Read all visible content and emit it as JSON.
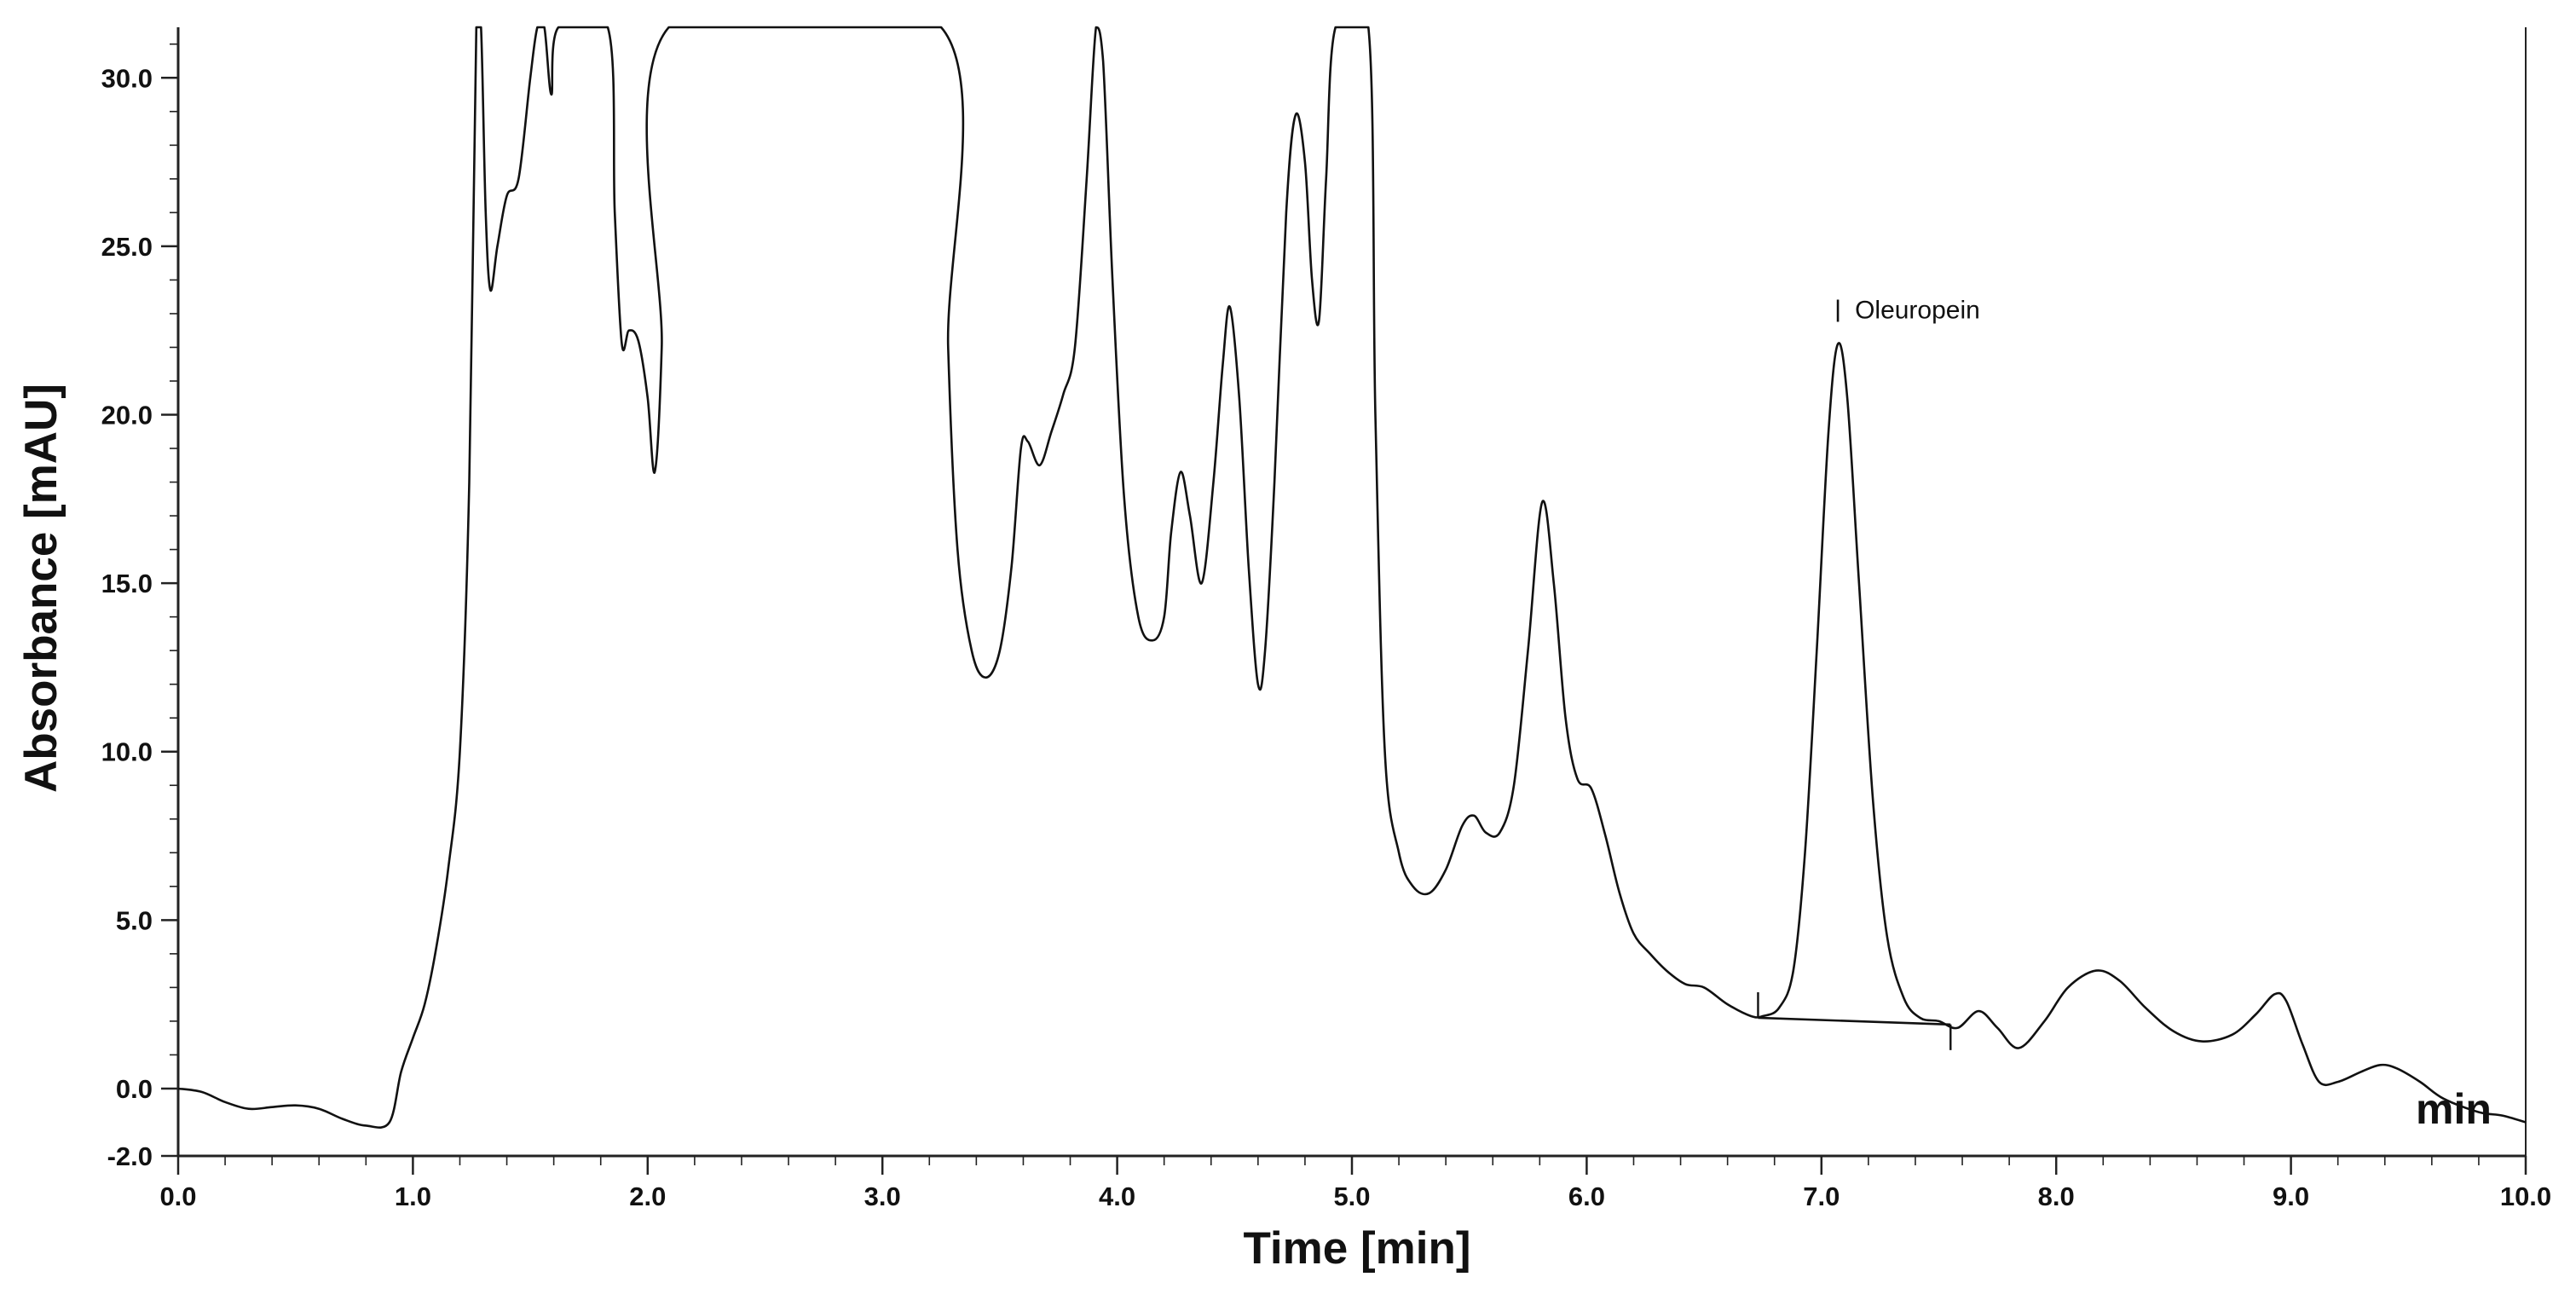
{
  "chart_data": {
    "type": "line",
    "title": "",
    "xlabel": "Time [min]",
    "ylabel": "Absorbance [mAU]",
    "x_unit_label": "min",
    "xlim": [
      0.0,
      10.0
    ],
    "ylim": [
      -2.0,
      31.5
    ],
    "x_ticks": [
      "0.0",
      "1.0",
      "2.0",
      "3.0",
      "4.0",
      "5.0",
      "6.0",
      "7.0",
      "8.0",
      "9.0",
      "10.0"
    ],
    "y_ticks": [
      "-2.0",
      "0.0",
      "5.0",
      "10.0",
      "15.0",
      "20.0",
      "25.0",
      "30.0"
    ],
    "x_tick_values": [
      0,
      1,
      2,
      3,
      4,
      5,
      6,
      7,
      8,
      9,
      10
    ],
    "y_tick_values": [
      -2,
      0,
      5,
      10,
      15,
      20,
      25,
      30
    ],
    "grid": false,
    "series": [
      {
        "points": [
          [
            0.0,
            0.0
          ],
          [
            0.1,
            -0.1
          ],
          [
            0.2,
            -0.4
          ],
          [
            0.3,
            -0.6
          ],
          [
            0.4,
            -0.55
          ],
          [
            0.5,
            -0.5
          ],
          [
            0.6,
            -0.6
          ],
          [
            0.7,
            -0.9
          ],
          [
            0.8,
            -1.1
          ],
          [
            0.9,
            -1.0
          ],
          [
            0.95,
            0.5
          ],
          [
            1.0,
            1.5
          ],
          [
            1.05,
            2.5
          ],
          [
            1.1,
            4.2
          ],
          [
            1.15,
            6.5
          ],
          [
            1.2,
            10.0
          ],
          [
            1.24,
            18.0
          ],
          [
            1.27,
            32.5
          ],
          [
            1.29,
            32.5
          ],
          [
            1.31,
            26.0
          ],
          [
            1.33,
            23.7
          ],
          [
            1.36,
            25.0
          ],
          [
            1.4,
            26.5
          ],
          [
            1.45,
            27.0
          ],
          [
            1.5,
            30.0
          ],
          [
            1.53,
            32.5
          ],
          [
            1.56,
            31.5
          ],
          [
            1.59,
            29.5
          ],
          [
            1.62,
            32.5
          ],
          [
            1.83,
            32.5
          ],
          [
            1.86,
            26.0
          ],
          [
            1.89,
            22.1
          ],
          [
            1.92,
            22.5
          ],
          [
            1.96,
            22.2
          ],
          [
            2.0,
            20.5
          ],
          [
            2.03,
            18.3
          ],
          [
            2.06,
            22.0
          ],
          [
            2.09,
            32.5
          ],
          [
            3.25,
            32.5
          ],
          [
            3.28,
            22.0
          ],
          [
            3.32,
            16.0
          ],
          [
            3.38,
            13.0
          ],
          [
            3.44,
            12.2
          ],
          [
            3.5,
            13.0
          ],
          [
            3.55,
            15.5
          ],
          [
            3.59,
            19.0
          ],
          [
            3.62,
            19.2
          ],
          [
            3.67,
            18.5
          ],
          [
            3.72,
            19.5
          ],
          [
            3.77,
            20.6
          ],
          [
            3.82,
            22.0
          ],
          [
            3.87,
            27.0
          ],
          [
            3.91,
            31.5
          ],
          [
            3.94,
            30.5
          ],
          [
            3.98,
            24.0
          ],
          [
            4.03,
            17.5
          ],
          [
            4.09,
            14.0
          ],
          [
            4.15,
            13.3
          ],
          [
            4.2,
            14.0
          ],
          [
            4.23,
            16.5
          ],
          [
            4.27,
            18.3
          ],
          [
            4.31,
            17.0
          ],
          [
            4.36,
            15.0
          ],
          [
            4.41,
            18.0
          ],
          [
            4.45,
            21.5
          ],
          [
            4.48,
            23.2
          ],
          [
            4.52,
            20.5
          ],
          [
            4.56,
            15.5
          ],
          [
            4.6,
            12.0
          ],
          [
            4.63,
            13.0
          ],
          [
            4.67,
            18.0
          ],
          [
            4.72,
            26.0
          ],
          [
            4.76,
            28.9
          ],
          [
            4.8,
            27.5
          ],
          [
            4.83,
            24.0
          ],
          [
            4.86,
            22.8
          ],
          [
            4.89,
            27.0
          ],
          [
            4.93,
            32.5
          ],
          [
            5.07,
            32.5
          ],
          [
            5.1,
            20.0
          ],
          [
            5.14,
            10.0
          ],
          [
            5.2,
            7.0
          ],
          [
            5.26,
            6.0
          ],
          [
            5.33,
            5.8
          ],
          [
            5.4,
            6.5
          ],
          [
            5.47,
            7.8
          ],
          [
            5.52,
            8.1
          ],
          [
            5.57,
            7.6
          ],
          [
            5.63,
            7.6
          ],
          [
            5.69,
            9.0
          ],
          [
            5.75,
            13.0
          ],
          [
            5.81,
            17.4
          ],
          [
            5.86,
            15.0
          ],
          [
            5.91,
            11.0
          ],
          [
            5.96,
            9.2
          ],
          [
            6.02,
            8.9
          ],
          [
            6.08,
            7.5
          ],
          [
            6.14,
            5.8
          ],
          [
            6.2,
            4.6
          ],
          [
            6.27,
            4.0
          ],
          [
            6.34,
            3.5
          ],
          [
            6.42,
            3.1
          ],
          [
            6.5,
            3.0
          ],
          [
            6.6,
            2.5
          ],
          [
            6.7,
            2.15
          ],
          [
            6.75,
            2.15
          ],
          [
            6.82,
            2.4
          ],
          [
            6.88,
            3.5
          ],
          [
            6.93,
            7.0
          ],
          [
            6.98,
            13.0
          ],
          [
            7.03,
            19.5
          ],
          [
            7.07,
            22.1
          ],
          [
            7.11,
            20.5
          ],
          [
            7.16,
            15.0
          ],
          [
            7.22,
            8.5
          ],
          [
            7.28,
            4.5
          ],
          [
            7.35,
            2.7
          ],
          [
            7.42,
            2.1
          ],
          [
            7.5,
            2.0
          ],
          [
            7.58,
            1.8
          ],
          [
            7.67,
            2.3
          ],
          [
            7.75,
            1.8
          ],
          [
            7.84,
            1.2
          ],
          [
            7.95,
            2.0
          ],
          [
            8.05,
            3.0
          ],
          [
            8.17,
            3.5
          ],
          [
            8.27,
            3.2
          ],
          [
            8.38,
            2.4
          ],
          [
            8.5,
            1.7
          ],
          [
            8.62,
            1.4
          ],
          [
            8.75,
            1.6
          ],
          [
            8.85,
            2.2
          ],
          [
            8.93,
            2.8
          ],
          [
            8.98,
            2.6
          ],
          [
            9.05,
            1.3
          ],
          [
            9.12,
            0.2
          ],
          [
            9.2,
            0.2
          ],
          [
            9.3,
            0.5
          ],
          [
            9.38,
            0.7
          ],
          [
            9.45,
            0.6
          ],
          [
            9.55,
            0.2
          ],
          [
            9.65,
            -0.3
          ],
          [
            9.8,
            -0.7
          ],
          [
            9.9,
            -0.8
          ],
          [
            10.0,
            -1.0
          ]
        ]
      }
    ],
    "integration_baseline": {
      "start": [
        6.73,
        2.1
      ],
      "end": [
        7.55,
        1.9
      ]
    },
    "annotations": [
      {
        "label": "Oleuropein",
        "x": 7.07,
        "y": 22.1
      }
    ]
  }
}
